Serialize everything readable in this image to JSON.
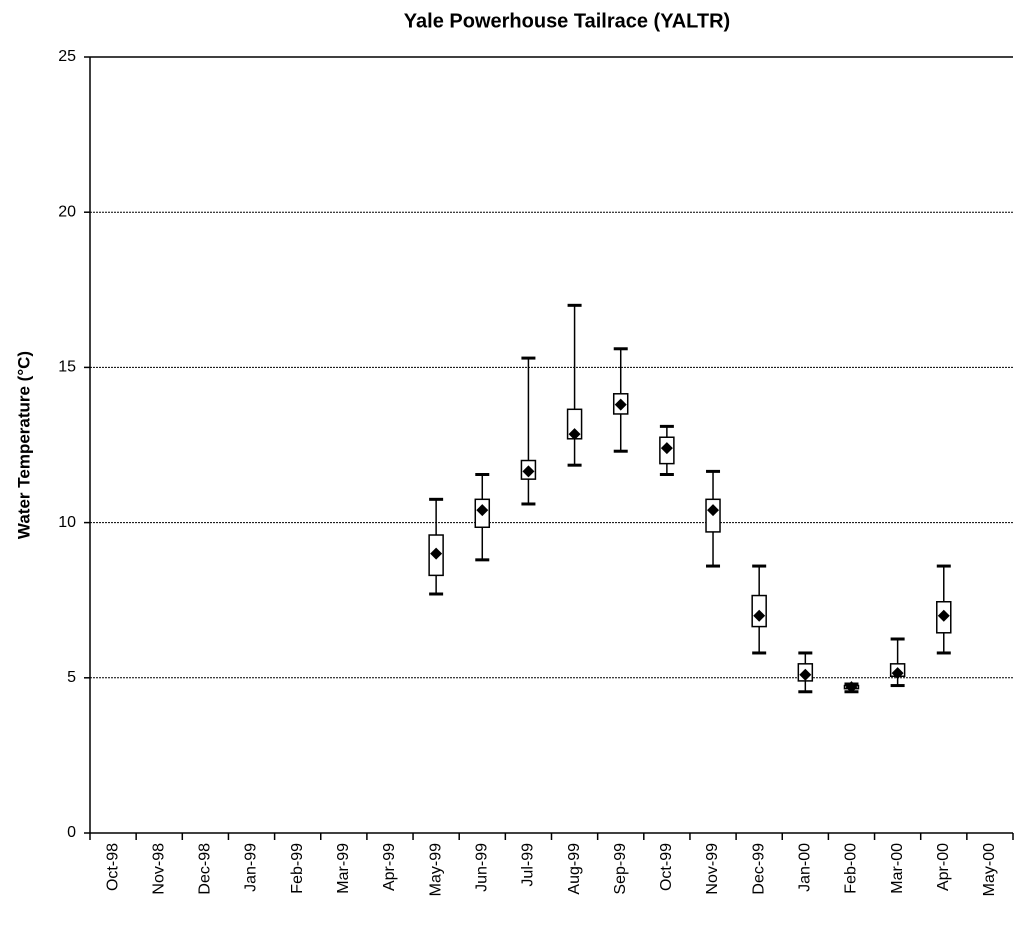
{
  "chart_data": {
    "type": "box",
    "title": "Yale Powerhouse Tailrace (YALTR)",
    "y_label": "Water Temperature (°C)",
    "categories": [
      "Oct-98",
      "Nov-98",
      "Dec-98",
      "Jan-99",
      "Feb-99",
      "Mar-99",
      "Apr-99",
      "May-99",
      "Jun-99",
      "Jul-99",
      "Aug-99",
      "Sep-99",
      "Oct-99",
      "Nov-99",
      "Dec-99",
      "Jan-00",
      "Feb-00",
      "Mar-00",
      "Apr-00",
      "May-00"
    ],
    "min": [
      null,
      null,
      null,
      null,
      null,
      null,
      null,
      7.7,
      8.8,
      10.6,
      11.85,
      12.3,
      11.55,
      8.6,
      5.8,
      4.55,
      4.55,
      4.75,
      5.8,
      null
    ],
    "q1": [
      null,
      null,
      null,
      null,
      null,
      null,
      null,
      8.3,
      9.85,
      11.4,
      12.7,
      13.5,
      11.9,
      9.7,
      6.65,
      4.9,
      4.65,
      5.05,
      6.45,
      null
    ],
    "q3": [
      null,
      null,
      null,
      null,
      null,
      null,
      null,
      9.6,
      10.75,
      12.0,
      13.65,
      14.15,
      12.75,
      10.75,
      7.65,
      5.45,
      4.75,
      5.45,
      7.45,
      null
    ],
    "max": [
      null,
      null,
      null,
      null,
      null,
      null,
      null,
      10.75,
      11.55,
      15.3,
      17.0,
      15.6,
      13.1,
      11.65,
      8.6,
      5.8,
      4.8,
      6.25,
      8.6,
      null
    ],
    "mean": [
      null,
      null,
      null,
      null,
      null,
      null,
      null,
      9.0,
      10.4,
      11.65,
      12.85,
      13.8,
      12.4,
      10.4,
      7.0,
      5.1,
      4.7,
      5.15,
      7.0,
      null
    ],
    "color": "#000000",
    "ylim": [
      0,
      25
    ],
    "yticks": [
      0,
      5,
      10,
      15,
      20,
      25
    ],
    "grid": true
  }
}
